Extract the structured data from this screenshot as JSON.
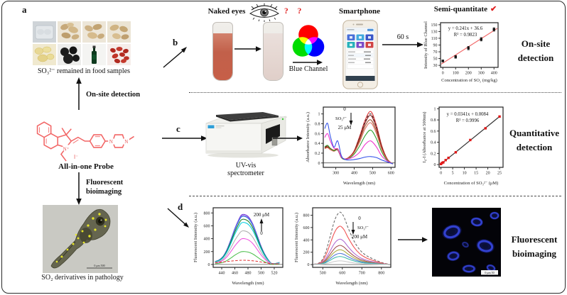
{
  "panels": {
    "a": "a",
    "b": "b",
    "c": "c",
    "d": "d"
  },
  "panel_a": {
    "food_caption": "SO₃²⁻ remained in food samples",
    "onsite_label": "On-site detection",
    "probe_name": "All-in-one Probe",
    "atoms": {
      "n_plus": "N⁺",
      "n_left": "N",
      "n_right": "N",
      "iodide": "I⁻"
    },
    "bioimaging_line1": "Fluorescent",
    "bioimaging_line2": "bioimaging",
    "zebrafish_caption": "SO₂ derivatives in pathology",
    "zebrafish_scale": "0    μm    500"
  },
  "panel_b": {
    "naked_eyes": "Naked eyes",
    "questions": "? ?",
    "blue_channel": "Blue Channel",
    "smartphone": "Smartphone",
    "time": "60 s",
    "check": "✔",
    "side_line1": "On-site",
    "side_line2": "detection"
  },
  "panel_c": {
    "instrument_line1": "UV-vis",
    "instrument_line2": "spectrometer",
    "side_line1": "Quantitative",
    "side_line2": "detection"
  },
  "panel_d": {
    "side_line1": "Fluorescent",
    "side_line2": "bioimaging",
    "cells_scale": "0  μm  50"
  },
  "chart_data": [
    {
      "id": "blue-channel-calibration",
      "type": "scatter",
      "title": "Semi-quantitate",
      "xlabel": "Concentration of SO₂ (mg/kg)",
      "ylabel": "Intensity of Blue Channel",
      "xlim": [
        -18,
        432
      ],
      "ylim": [
        24,
        156
      ],
      "xticks": [
        0,
        100,
        200,
        300,
        400
      ],
      "yticks": [
        30,
        50,
        70,
        90,
        110,
        130,
        150
      ],
      "equation": "y = 0.241x + 36.6",
      "r_squared": "R² = 0.9823",
      "fit": {
        "slope": 0.241,
        "intercept": 36.6,
        "x": [
          -12,
          426
        ],
        "color": "#f26a6a"
      },
      "scatter": {
        "x": [
          0,
          100,
          200,
          300,
          400
        ],
        "y": [
          43,
          55,
          81,
          107,
          136
        ],
        "err": [
          3,
          4,
          5,
          5,
          5
        ],
        "color": "#151515",
        "marker": "square"
      },
      "m": [
        26,
        5,
        7,
        22
      ]
    },
    {
      "id": "uv-vis-absorbance-spectra",
      "type": "line",
      "xlabel": "Wavelength (nm)",
      "ylabel": "Absorbance Intensity (a.u.)",
      "xlim": [
        232,
        622
      ],
      "ylim": [
        -0.09,
        1.14
      ],
      "xticks": [
        300,
        400,
        500,
        600
      ],
      "yticks": [
        0,
        0.2,
        0.4,
        0.6,
        0.8,
        1
      ],
      "zeroline": true,
      "annotation": {
        "top": "0",
        "side": "SO₃²⁻",
        "bottom": "25 μM",
        "direction": "down"
      },
      "x": [
        240,
        255,
        270,
        290,
        310,
        330,
        350,
        375,
        400,
        430,
        460,
        490,
        520,
        550,
        580,
        610
      ],
      "series": [
        {
          "label": "0 μM",
          "color": "#e03030",
          "y": [
            0.32,
            0.35,
            0.3,
            0.26,
            0.29,
            0.12,
            0.08,
            0.13,
            0.25,
            0.55,
            0.88,
            1.05,
            0.78,
            0.35,
            0.08,
            -0.02
          ]
        },
        {
          "color": "#3a3a3a",
          "dash": true,
          "y": [
            0.31,
            0.34,
            0.29,
            0.25,
            0.28,
            0.12,
            0.08,
            0.12,
            0.24,
            0.53,
            0.85,
            1.0,
            0.75,
            0.33,
            0.07,
            -0.02
          ]
        },
        {
          "color": "#8b1a1a",
          "y": [
            0.31,
            0.33,
            0.29,
            0.25,
            0.28,
            0.12,
            0.08,
            0.12,
            0.23,
            0.51,
            0.82,
            0.97,
            0.72,
            0.32,
            0.07,
            -0.02
          ]
        },
        {
          "color": "#a0522d",
          "y": [
            0.3,
            0.32,
            0.28,
            0.24,
            0.27,
            0.11,
            0.08,
            0.12,
            0.22,
            0.47,
            0.76,
            0.88,
            0.66,
            0.29,
            0.06,
            -0.02
          ]
        },
        {
          "color": "#e07060",
          "y": [
            0.29,
            0.31,
            0.27,
            0.24,
            0.26,
            0.11,
            0.07,
            0.11,
            0.21,
            0.43,
            0.7,
            0.82,
            0.61,
            0.27,
            0.06,
            -0.02
          ]
        },
        {
          "color": "#2ca02c",
          "y": [
            0.33,
            0.36,
            0.3,
            0.25,
            0.27,
            0.11,
            0.07,
            0.1,
            0.18,
            0.35,
            0.56,
            0.67,
            0.5,
            0.22,
            0.05,
            -0.02
          ]
        },
        {
          "color": "#ee30cc",
          "y": [
            0.52,
            0.6,
            0.45,
            0.3,
            0.28,
            0.12,
            0.08,
            0.09,
            0.13,
            0.22,
            0.38,
            0.45,
            0.33,
            0.14,
            0.04,
            -0.02
          ]
        },
        {
          "label": "25 μM",
          "color": "#3050e8",
          "y": [
            0.7,
            0.81,
            0.55,
            0.32,
            0.45,
            0.15,
            0.07,
            0.06,
            0.07,
            0.09,
            0.12,
            0.13,
            0.11,
            0.06,
            0.02,
            -0.02
          ]
        }
      ],
      "m": [
        27,
        7,
        6,
        26
      ]
    },
    {
      "id": "absorbance-linear-calibration",
      "type": "scatter",
      "xlabel": "Concentration of SO₃²⁻ (μM)",
      "ylabel": "I₀-I (Absorbance at 500nm)",
      "xlim": [
        -0.8,
        26.5
      ],
      "ylim": [
        -0.05,
        1.03
      ],
      "xticks": [
        0,
        5,
        10,
        15,
        20,
        25
      ],
      "yticks": [
        0,
        0.2,
        0.4,
        0.6,
        0.8,
        1
      ],
      "equation": "y = 0.0341x + 0.0084",
      "r_squared": "R² = 0.9996",
      "fit": {
        "slope": 0.0341,
        "intercept": 0.0084,
        "x": [
          0,
          25.4
        ],
        "color": "#333333"
      },
      "scatter": {
        "x": [
          0,
          0.5,
          1,
          2,
          3.2,
          6.3,
          12.5,
          19,
          25
        ],
        "y": [
          0.01,
          0.03,
          0.04,
          0.08,
          0.12,
          0.22,
          0.44,
          0.65,
          0.86
        ],
        "color": "#e01818",
        "marker": "square"
      },
      "m": [
        26,
        7,
        8,
        26
      ]
    },
    {
      "id": "fluorescence-blue-spectra",
      "type": "line",
      "xlabel": "Wavelength (nm)",
      "ylabel": "Fluorescent Intensity (a.u.)",
      "xlim": [
        427,
        533
      ],
      "ylim": [
        -45,
        880
      ],
      "xticks": [
        440,
        460,
        480,
        500,
        520
      ],
      "yticks": [
        0,
        200,
        400,
        600,
        800
      ],
      "zeroline": true,
      "annotation": {
        "top": "200 μM",
        "bottom": "0",
        "direction": "up"
      },
      "x": [
        430,
        436,
        442,
        448,
        454,
        460,
        466,
        470,
        475,
        481,
        487,
        493,
        499,
        505,
        511,
        516,
        522,
        528
      ],
      "shape": [
        0.06,
        0.09,
        0.16,
        0.3,
        0.5,
        0.72,
        0.9,
        0.99,
        1.0,
        0.95,
        0.82,
        0.62,
        0.4,
        0.22,
        0.09,
        0.02,
        0.02,
        0.04
      ],
      "series": [
        {
          "label": "200 μM",
          "color": "#6a30d8",
          "peak": 775
        },
        {
          "color": "#9060e0",
          "peak": 758
        },
        {
          "color": "#2f7fe0",
          "peak": 745
        },
        {
          "color": "#1e7a1e",
          "peak": 700
        },
        {
          "color": "#00cfe0",
          "peak": 650
        },
        {
          "color": "#b0b0b0",
          "peak": 520
        },
        {
          "color": "#f050e0",
          "peak": 400
        },
        {
          "color": "#50c050",
          "peak": 200
        },
        {
          "label": "0",
          "color": "#e03030",
          "dash": true,
          "y": [
            28,
            32,
            38,
            45,
            52,
            58,
            62,
            65,
            65,
            62,
            57,
            50,
            40,
            30,
            18,
            10,
            8,
            12
          ]
        }
      ],
      "m": [
        30,
        6,
        6,
        26
      ]
    },
    {
      "id": "fluorescence-red-spectra",
      "type": "line",
      "xlabel": "Wavelength (nm)",
      "ylabel": "Fluorescent Intensity (a.u.)",
      "xlim": [
        448,
        848
      ],
      "ylim": [
        -45,
        920
      ],
      "xticks": [
        500,
        600,
        700,
        800
      ],
      "yticks": [
        0,
        200,
        400,
        600,
        800
      ],
      "zeroline": true,
      "annotation": {
        "top": "0",
        "side": "SO₃²⁻",
        "bottom": "200 μM",
        "direction": "down"
      },
      "x": [
        455,
        475,
        495,
        515,
        535,
        555,
        570,
        585,
        595,
        610,
        630,
        660,
        690,
        720,
        750,
        780,
        810,
        835
      ],
      "shape": [
        0.01,
        0.02,
        0.08,
        0.24,
        0.5,
        0.78,
        0.93,
        1.0,
        0.99,
        0.9,
        0.7,
        0.45,
        0.28,
        0.18,
        0.12,
        0.07,
        0.03,
        0.01
      ],
      "series": [
        {
          "label": "0",
          "color": "#6a6a6a",
          "dash": true,
          "peak": 845
        },
        {
          "color": "#f05050",
          "peak": 620
        },
        {
          "color": "#b06ad0",
          "peak": 410
        },
        {
          "color": "#a34d4d",
          "peak": 310
        },
        {
          "color": "#a8a838",
          "peak": 240
        },
        {
          "color": "#5578d8",
          "peak": 180
        },
        {
          "color": "#38b8a8",
          "peak": 130
        },
        {
          "label": "200 μM",
          "color": "#c8c8c8",
          "peak": 60
        }
      ],
      "m": [
        28,
        6,
        8,
        26
      ]
    }
  ]
}
